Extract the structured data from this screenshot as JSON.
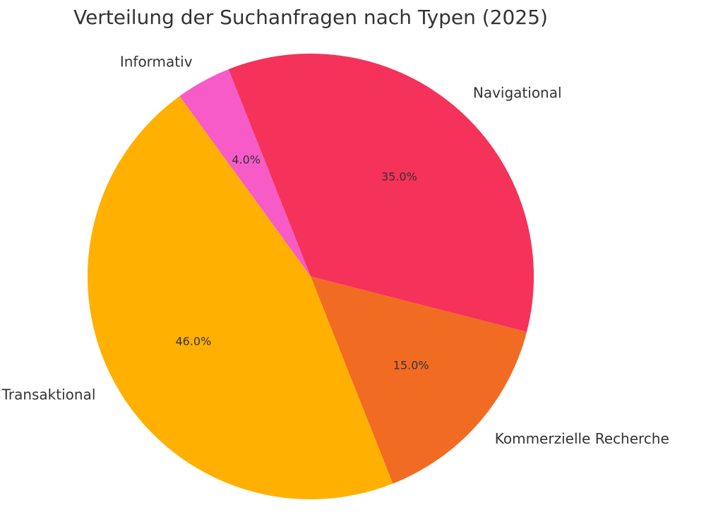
{
  "chart_data": {
    "type": "pie",
    "title": "Verteilung der Suchanfragen nach Typen (2025)",
    "categories": [
      "Informativ",
      "Navigational",
      "Kommerzielle Recherche",
      "Transaktional"
    ],
    "values": [
      4.0,
      35.0,
      15.0,
      46.0
    ],
    "value_labels": [
      "4.0%",
      "35.0%",
      "15.0%",
      "46.0%"
    ],
    "colors": [
      "#f75bc8",
      "#f5325a",
      "#f26b23",
      "#ffb000"
    ],
    "start_angle_deg": 126.0,
    "direction": "clockwise"
  }
}
